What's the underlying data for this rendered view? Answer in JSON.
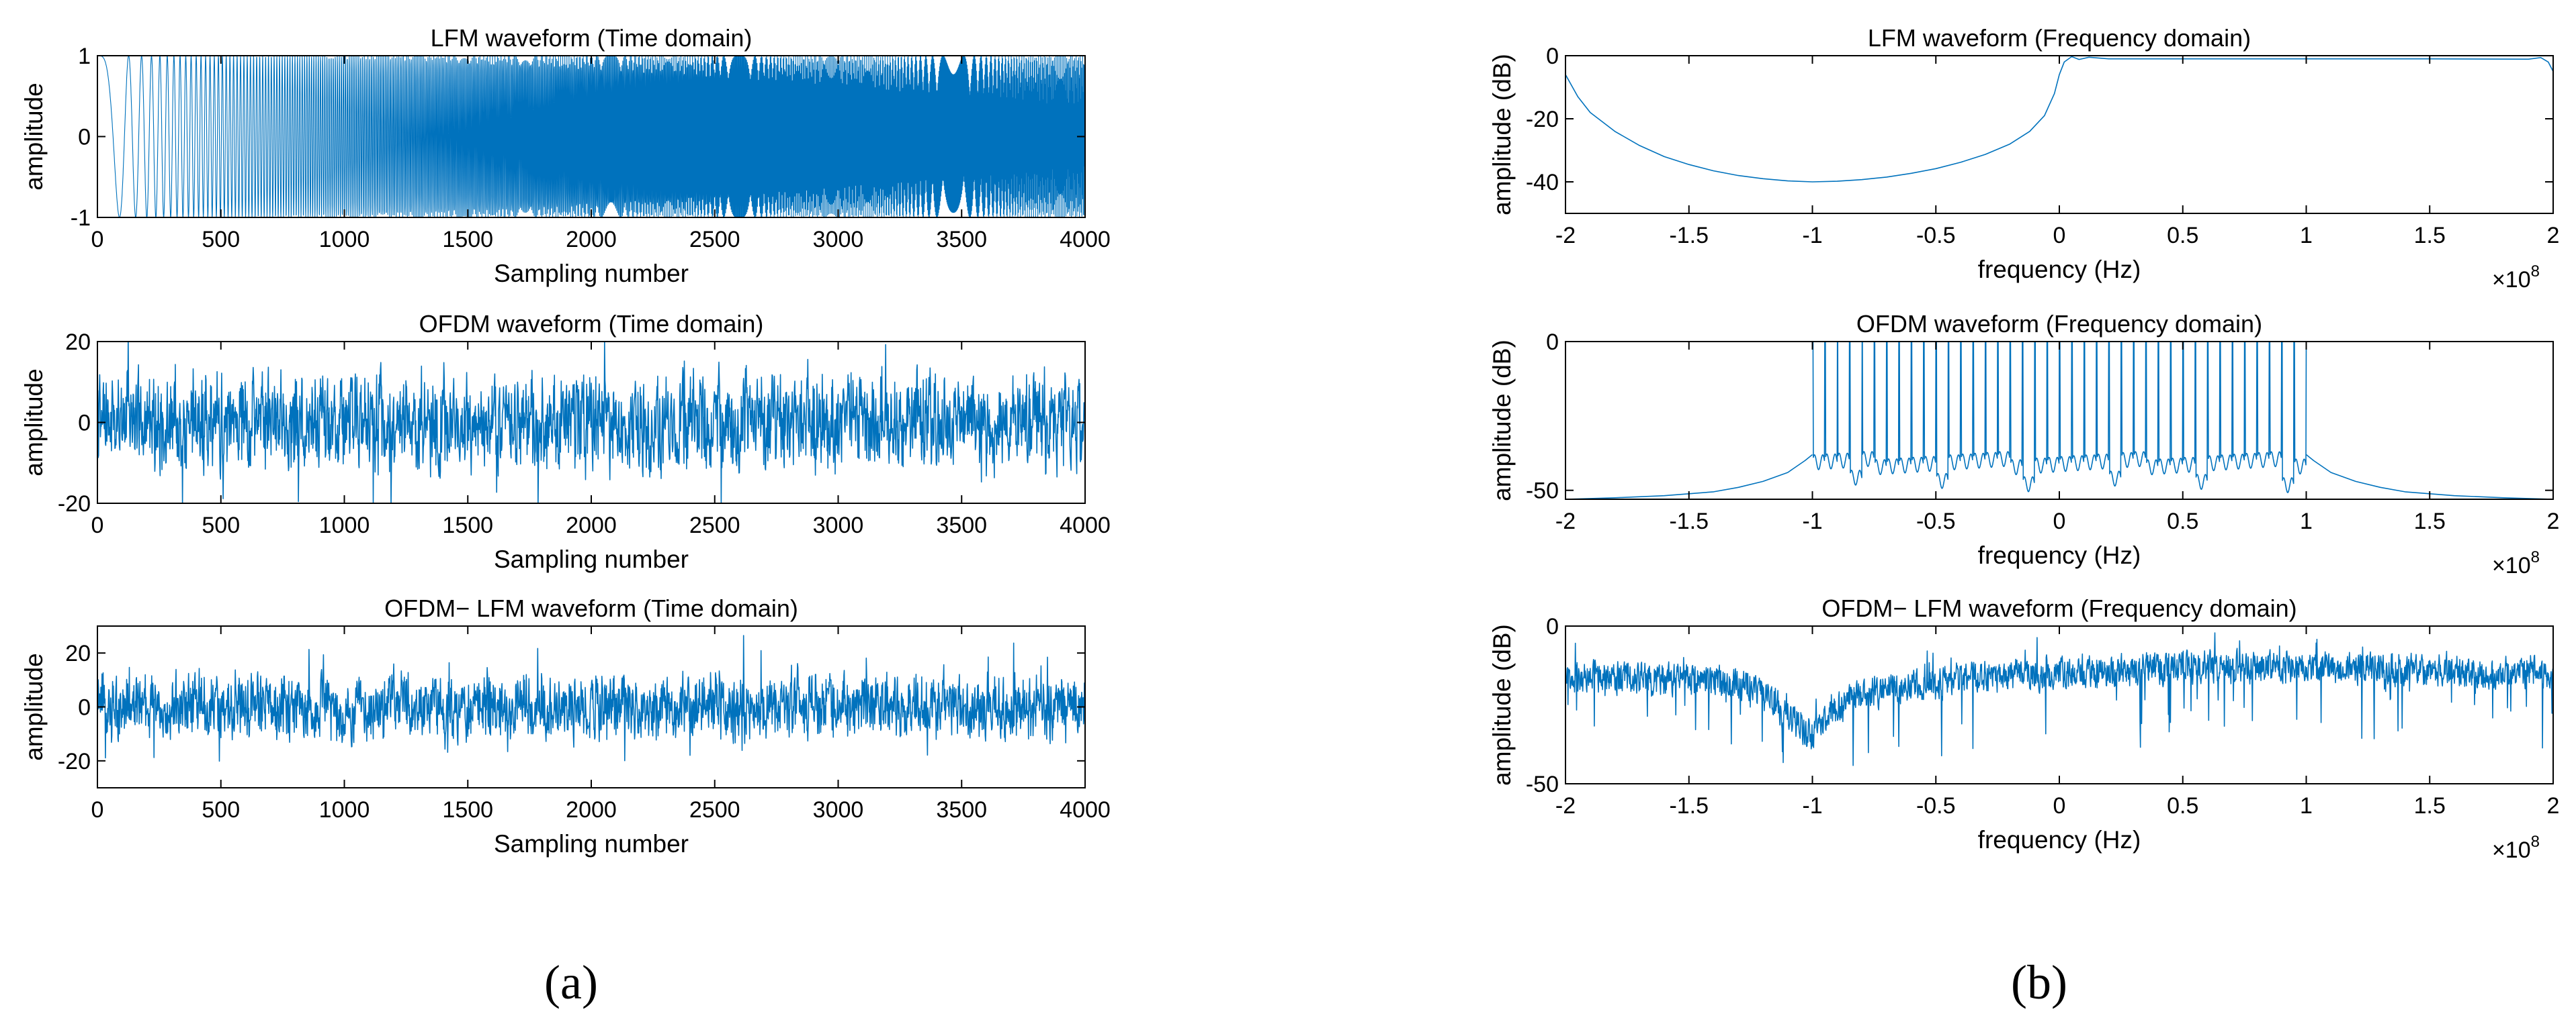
{
  "colors": {
    "trace": "#0072BD",
    "axis": "#000000",
    "background": "#ffffff"
  },
  "panel_labels": [
    "(a)",
    "(b)"
  ],
  "chart_data": [
    {
      "type": "line",
      "title": "LFM waveform (Time domain)",
      "xlabel": "Sampling number",
      "ylabel": "amplitude",
      "xlim": [
        0,
        4000
      ],
      "ylim": [
        -1,
        1
      ],
      "xticks": [
        0,
        500,
        1000,
        1500,
        2000,
        2500,
        3000,
        3500,
        4000
      ],
      "xtick_labels": [
        "0",
        "500",
        "1000",
        "1500",
        "2000",
        "2500",
        "3000",
        "3500",
        "4000"
      ],
      "yticks": [
        1,
        0,
        -1
      ],
      "ytick_labels": [
        "1",
        "0",
        "-1"
      ],
      "x_exponent_label": "",
      "grid": false,
      "series": [
        {
          "kind": "chirp",
          "amplitude": 1,
          "freq_start": 0.0,
          "freq_end": 0.5,
          "points": [
            [
              0,
              0
            ],
            [
              4000,
              0
            ]
          ]
        }
      ]
    },
    {
      "type": "line",
      "title": "OFDM waveform (Time domain)",
      "xlabel": "Sampling number",
      "ylabel": "amplitude",
      "xlim": [
        0,
        4000
      ],
      "ylim": [
        -20,
        20
      ],
      "xticks": [
        0,
        500,
        1000,
        1500,
        2000,
        2500,
        3000,
        3500,
        4000
      ],
      "xtick_labels": [
        "0",
        "500",
        "1000",
        "1500",
        "2000",
        "2500",
        "3000",
        "3500",
        "4000"
      ],
      "yticks": [
        20,
        0,
        -20
      ],
      "ytick_labels": [
        "20",
        "0",
        "-20"
      ],
      "x_exponent_label": "",
      "grid": false,
      "series": [
        {
          "kind": "noise",
          "amplitude": 9,
          "points": [
            [
              0,
              0
            ],
            [
              4000,
              0
            ]
          ]
        }
      ]
    },
    {
      "type": "line",
      "title": "OFDM− LFM waveform (Time domain)",
      "xlabel": "Sampling number",
      "ylabel": "amplitude",
      "xlim": [
        0,
        4000
      ],
      "ylim": [
        -30,
        30
      ],
      "xticks": [
        0,
        500,
        1000,
        1500,
        2000,
        2500,
        3000,
        3500,
        4000
      ],
      "xtick_labels": [
        "0",
        "500",
        "1000",
        "1500",
        "2000",
        "2500",
        "3000",
        "3500",
        "4000"
      ],
      "yticks": [
        20,
        0,
        -20
      ],
      "ytick_labels": [
        "20",
        "0",
        "-20"
      ],
      "x_exponent_label": "",
      "grid": false,
      "series": [
        {
          "kind": "noise",
          "amplitude": 9,
          "points": [
            [
              0,
              0
            ],
            [
              4000,
              0
            ]
          ]
        }
      ]
    },
    {
      "type": "line",
      "title": "LFM waveform (Frequency domain)",
      "xlabel": "frequency (Hz)",
      "ylabel": "amplitude (dB)",
      "xlim": [
        -2,
        2
      ],
      "ylim": [
        -50,
        0
      ],
      "xticks": [
        -2,
        -1.5,
        -1,
        -0.5,
        0,
        0.5,
        1,
        1.5,
        2
      ],
      "xtick_labels": [
        "-2",
        "-1.5",
        "-1",
        "-0.5",
        "0",
        "0.5",
        "1",
        "1.5",
        "2"
      ],
      "yticks": [
        0,
        -20,
        -40
      ],
      "ytick_labels": [
        "0",
        "-20",
        "-40"
      ],
      "x_exponent_label": "×10",
      "x_exponent_power": "8",
      "x_scale": 100000000,
      "grid": false,
      "series": [
        {
          "kind": "curve",
          "points": [
            [
              -2,
              -6
            ],
            [
              -1.95,
              -13
            ],
            [
              -1.9,
              -18
            ],
            [
              -1.8,
              -24
            ],
            [
              -1.7,
              -28.5
            ],
            [
              -1.6,
              -32
            ],
            [
              -1.5,
              -34.5
            ],
            [
              -1.4,
              -36.5
            ],
            [
              -1.3,
              -38
            ],
            [
              -1.2,
              -39
            ],
            [
              -1.1,
              -39.7
            ],
            [
              -1.0,
              -40
            ],
            [
              -0.9,
              -39.8
            ],
            [
              -0.8,
              -39.3
            ],
            [
              -0.7,
              -38.5
            ],
            [
              -0.6,
              -37.3
            ],
            [
              -0.5,
              -35.8
            ],
            [
              -0.4,
              -33.8
            ],
            [
              -0.3,
              -31.3
            ],
            [
              -0.2,
              -28
            ],
            [
              -0.12,
              -24
            ],
            [
              -0.06,
              -19
            ],
            [
              -0.02,
              -12
            ],
            [
              0.0,
              -6
            ],
            [
              0.02,
              -2
            ],
            [
              0.05,
              -0.3
            ],
            [
              0.08,
              -1.2
            ],
            [
              0.12,
              -0.5
            ],
            [
              0.2,
              -1.0
            ],
            [
              0.5,
              -1.0
            ],
            [
              1.0,
              -1.0
            ],
            [
              1.5,
              -1.0
            ],
            [
              1.9,
              -1.1
            ],
            [
              1.95,
              -0.6
            ],
            [
              1.98,
              -2
            ],
            [
              2.0,
              -5
            ]
          ]
        }
      ]
    },
    {
      "type": "line",
      "title": "OFDM waveform (Frequency domain)",
      "xlabel": "frequency (Hz)",
      "ylabel": "amplitude (dB)",
      "xlim": [
        -2,
        2
      ],
      "ylim": [
        -53,
        0
      ],
      "xticks": [
        -2,
        -1.5,
        -1,
        -0.5,
        0,
        0.5,
        1,
        1.5,
        2
      ],
      "xtick_labels": [
        "-2",
        "-1.5",
        "-1",
        "-0.5",
        "0",
        "0.5",
        "1",
        "1.5",
        "2"
      ],
      "yticks": [
        0,
        -50
      ],
      "ytick_labels": [
        "0",
        "-50"
      ],
      "x_exponent_label": "×10",
      "x_exponent_power": "8",
      "x_scale": 100000000,
      "grid": false,
      "series": [
        {
          "kind": "curve",
          "points": [
            [
              -2,
              -53
            ],
            [
              -1.8,
              -52.5
            ],
            [
              -1.6,
              -51.8
            ],
            [
              -1.4,
              -50.5
            ],
            [
              -1.3,
              -49
            ],
            [
              -1.2,
              -47
            ],
            [
              -1.1,
              -44
            ],
            [
              -1.03,
              -40
            ],
            [
              -1.0,
              -38
            ]
          ]
        },
        {
          "kind": "band",
          "x_range": [
            -1.0,
            1.0
          ],
          "peak": 0,
          "floor": -38,
          "dip": -45,
          "points": [
            [
              -1,
              0
            ],
            [
              1,
              0
            ]
          ]
        },
        {
          "kind": "curve",
          "points": [
            [
              1.0,
              -38
            ],
            [
              1.03,
              -40
            ],
            [
              1.1,
              -44
            ],
            [
              1.2,
              -47
            ],
            [
              1.3,
              -49
            ],
            [
              1.4,
              -50.5
            ],
            [
              1.6,
              -51.8
            ],
            [
              1.8,
              -52.5
            ],
            [
              2.0,
              -53
            ]
          ]
        }
      ]
    },
    {
      "type": "line",
      "title": "OFDM− LFM waveform (Frequency domain)",
      "xlabel": "frequency (Hz)",
      "ylabel": "amplitude (dB)",
      "xlim": [
        -2,
        2
      ],
      "ylim": [
        -50,
        0
      ],
      "xticks": [
        -2,
        -1.5,
        -1,
        -0.5,
        0,
        0.5,
        1,
        1.5,
        2
      ],
      "xtick_labels": [
        "-2",
        "-1.5",
        "-1",
        "-0.5",
        "0",
        "0.5",
        "1",
        "1.5",
        "2"
      ],
      "yticks": [
        0,
        -50
      ],
      "ytick_labels": [
        "0",
        "-50"
      ],
      "x_exponent_label": "×10",
      "x_exponent_power": "8",
      "x_scale": 100000000,
      "grid": false,
      "series": [
        {
          "kind": "noisy_curve",
          "points": [
            [
              -2,
              -16
            ],
            [
              -1.5,
              -17
            ],
            [
              -1.25,
              -19
            ],
            [
              -1.15,
              -25
            ],
            [
              -1.05,
              -32
            ],
            [
              -1.0,
              -35
            ],
            [
              -0.95,
              -30
            ],
            [
              -0.85,
              -23
            ],
            [
              -0.7,
              -20
            ],
            [
              -0.5,
              -18
            ],
            [
              -0.3,
              -16
            ],
            [
              0.0,
              -15
            ],
            [
              0.5,
              -13
            ],
            [
              1.0,
              -13
            ],
            [
              1.5,
              -14
            ],
            [
              2.0,
              -15
            ]
          ]
        }
      ]
    }
  ]
}
